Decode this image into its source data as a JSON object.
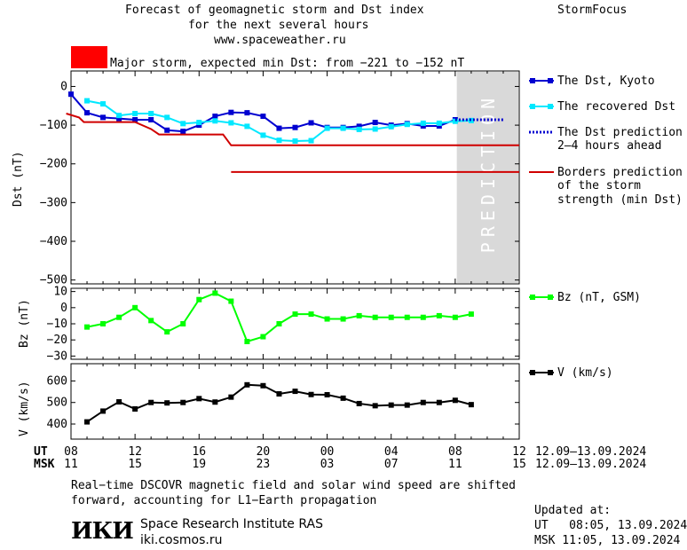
{
  "header": {
    "title_lines": [
      "Forecast of geomagnetic storm and Dst index",
      "for the next several hours",
      "www.spaceweather.ru"
    ],
    "brand": "StormFocus",
    "storm_label": "Major storm, expected min Dst: from −221 to −152 nT",
    "storm_color": "#ff0000"
  },
  "prediction_label": "PREDICTION",
  "legend": {
    "dst_kyoto": "The Dst, Kyoto",
    "dst_recovered": "The recovered Dst",
    "dst_prediction": [
      "The Dst prediction",
      "2–4 hours ahead"
    ],
    "borders": [
      "Borders prediction",
      "of the storm",
      "strength (min Dst)"
    ],
    "bz": "Bz (nT, GSM)",
    "v": "V (km/s)"
  },
  "time_axis": {
    "ut_label": "UT",
    "msk_label": "MSK",
    "ut_ticks": [
      "08",
      "12",
      "16",
      "20",
      "00",
      "04",
      "08",
      "12"
    ],
    "msk_ticks": [
      "11",
      "15",
      "19",
      "23",
      "03",
      "07",
      "11",
      "15"
    ],
    "date_range_ut": "12.09–13.09.2024",
    "date_range_msk": "12.09–13.09.2024"
  },
  "footer": {
    "note_lines": [
      "Real−time DSCOVR magnetic field and solar wind speed are shifted",
      "forward, accounting for L1−Earth propagation"
    ],
    "logo": "ИКИ",
    "institute": "Space Research Institute RAS",
    "site": "iki.cosmos.ru",
    "updated_label": "Updated at:",
    "updated_ut": "UT   08:05, 13.09.2024",
    "updated_msk": "MSK 11:05, 13.09.2024"
  },
  "chart_data": [
    {
      "type": "line",
      "ylabel": "Dst (nT)",
      "xlim": [
        8,
        36
      ],
      "ylim": [
        -510,
        40
      ],
      "yticks": [
        0,
        -100,
        -200,
        -300,
        -400,
        -500
      ],
      "ytick_labels": [
        "0",
        "−100",
        "−200",
        "−300",
        "−400",
        "−500"
      ],
      "prediction_region": [
        32.1,
        36
      ],
      "series": [
        {
          "name": "The Dst, Kyoto",
          "color": "#0000d0",
          "x": [
            8,
            9,
            10,
            11,
            12,
            13,
            14,
            15,
            16,
            17,
            18,
            19,
            20,
            21,
            22,
            23,
            24,
            25,
            26,
            27,
            28,
            29,
            30,
            31,
            32
          ],
          "y": [
            -20,
            -68,
            -80,
            -83,
            -86,
            -86,
            -113,
            -116,
            -100,
            -77,
            -67,
            -68,
            -77,
            -108,
            -106,
            -94,
            -106,
            -106,
            -103,
            -93,
            -100,
            -96,
            -102,
            -102,
            -86
          ]
        },
        {
          "name": "The recovered Dst",
          "color": "#00e8ff",
          "x": [
            9,
            10,
            11,
            12,
            13,
            14,
            15,
            16,
            17,
            18,
            19,
            20,
            21,
            22,
            23,
            24,
            25,
            26,
            27,
            28,
            29,
            30,
            31,
            32,
            33
          ],
          "y": [
            -37,
            -45,
            -75,
            -70,
            -70,
            -80,
            -96,
            -93,
            -89,
            -94,
            -103,
            -126,
            -139,
            -141,
            -140,
            -108,
            -108,
            -111,
            -110,
            -104,
            -98,
            -95,
            -95,
            -90,
            -88
          ]
        },
        {
          "name": "The Dst prediction",
          "color": "#0000d0",
          "dashed": true,
          "x": [
            32,
            35
          ],
          "y": [
            -86,
            -86
          ]
        },
        {
          "name": "Borders prediction",
          "color": "#d00000",
          "x": [
            7.7,
            8.5,
            8.8,
            12,
            13,
            13.5,
            17.5,
            18,
            22,
            36
          ],
          "y": [
            -70,
            -80,
            -92,
            -92,
            -110,
            -124,
            -124,
            -152,
            -152,
            -152
          ]
        },
        {
          "name": "Borders prediction",
          "color": "#d00000",
          "x": [
            18,
            36
          ],
          "y": [
            -221,
            -221
          ]
        }
      ]
    },
    {
      "type": "line",
      "ylabel": "Bz (nT)",
      "xlim": [
        8,
        36
      ],
      "ylim": [
        -32,
        12
      ],
      "yticks": [
        10,
        0,
        -10,
        -20,
        -30
      ],
      "ytick_labels": [
        "10",
        "0",
        "−10",
        "−20",
        "−30"
      ],
      "series": [
        {
          "name": "Bz (nT, GSM)",
          "color": "#00ff00",
          "x": [
            9,
            10,
            11,
            12,
            13,
            14,
            15,
            16,
            17,
            18,
            19,
            20,
            21,
            22,
            23,
            24,
            25,
            26,
            27,
            28,
            29,
            30,
            31,
            32,
            33
          ],
          "y": [
            -12,
            -10,
            -6,
            0,
            -8,
            -15,
            -10,
            5,
            9,
            4,
            -21,
            -18,
            -10,
            -4,
            -4,
            -7,
            -7,
            -5,
            -6,
            -6,
            -6,
            -6,
            -5,
            -6,
            -4
          ]
        }
      ]
    },
    {
      "type": "line",
      "ylabel": "V (km/s)",
      "xlim": [
        8,
        36
      ],
      "ylim": [
        330,
        680
      ],
      "yticks": [
        600,
        500,
        400
      ],
      "ytick_labels": [
        "600",
        "500",
        "400"
      ],
      "series": [
        {
          "name": "V (km/s)",
          "color": "#000000",
          "x": [
            9,
            10,
            11,
            12,
            13,
            14,
            15,
            16,
            17,
            18,
            19,
            20,
            21,
            22,
            23,
            24,
            25,
            26,
            27,
            28,
            29,
            30,
            31,
            32,
            33
          ],
          "y": [
            410,
            460,
            503,
            470,
            500,
            498,
            500,
            518,
            502,
            525,
            582,
            578,
            540,
            552,
            537,
            536,
            520,
            495,
            485,
            488,
            488,
            500,
            500,
            510,
            490
          ]
        }
      ]
    }
  ]
}
